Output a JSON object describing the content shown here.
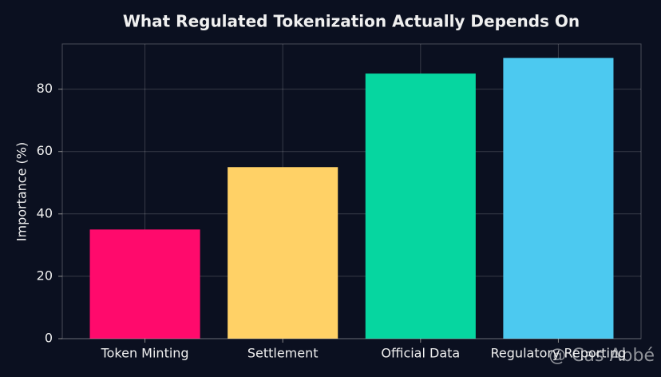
{
  "chart_data": {
    "type": "bar",
    "title": "What Regulated Tokenization Actually Depends On",
    "y_label": "Importance (%)",
    "categories": [
      "Token Minting",
      "Settlement",
      "Official Data",
      "Regulatory Reporting"
    ],
    "values": [
      35,
      55,
      85,
      90
    ],
    "colors": [
      "#ff0a6c",
      "#ffd166",
      "#06d6a0",
      "#4cc9f0"
    ],
    "ylim": [
      0,
      94.5
    ],
    "yticks": [
      0,
      20,
      40,
      60,
      80
    ],
    "grid": true,
    "watermark": "@ Cas Abbé"
  }
}
